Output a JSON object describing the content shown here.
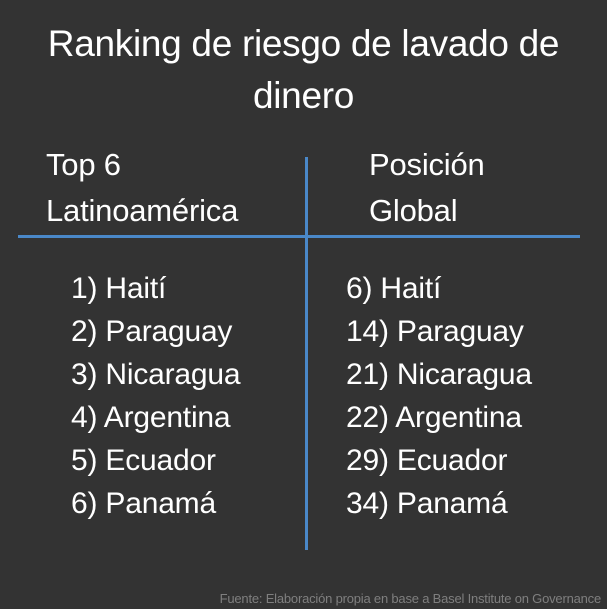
{
  "title": "Ranking de riesgo de lavado de dinero",
  "headers": {
    "left": [
      "Top 6",
      "Latinoamérica"
    ],
    "right": [
      "Posición",
      "Global"
    ]
  },
  "left_column": [
    "1) Haití",
    "2) Paraguay",
    "3) Nicaragua",
    "4) Argentina",
    "5) Ecuador",
    "6) Panamá"
  ],
  "right_column": [
    "6) Haití",
    "14) Paraguay",
    "21) Nicaragua",
    "22) Argentina",
    "29) Ecuador",
    "34) Panamá"
  ],
  "footer": "Fuente: Elaboración propia en base a Basel Institute on Governance",
  "colors": {
    "background": "#333333",
    "accent_lines": "#4a88c8",
    "text": "#ffffff",
    "footer_text": "#7f7f7f"
  }
}
